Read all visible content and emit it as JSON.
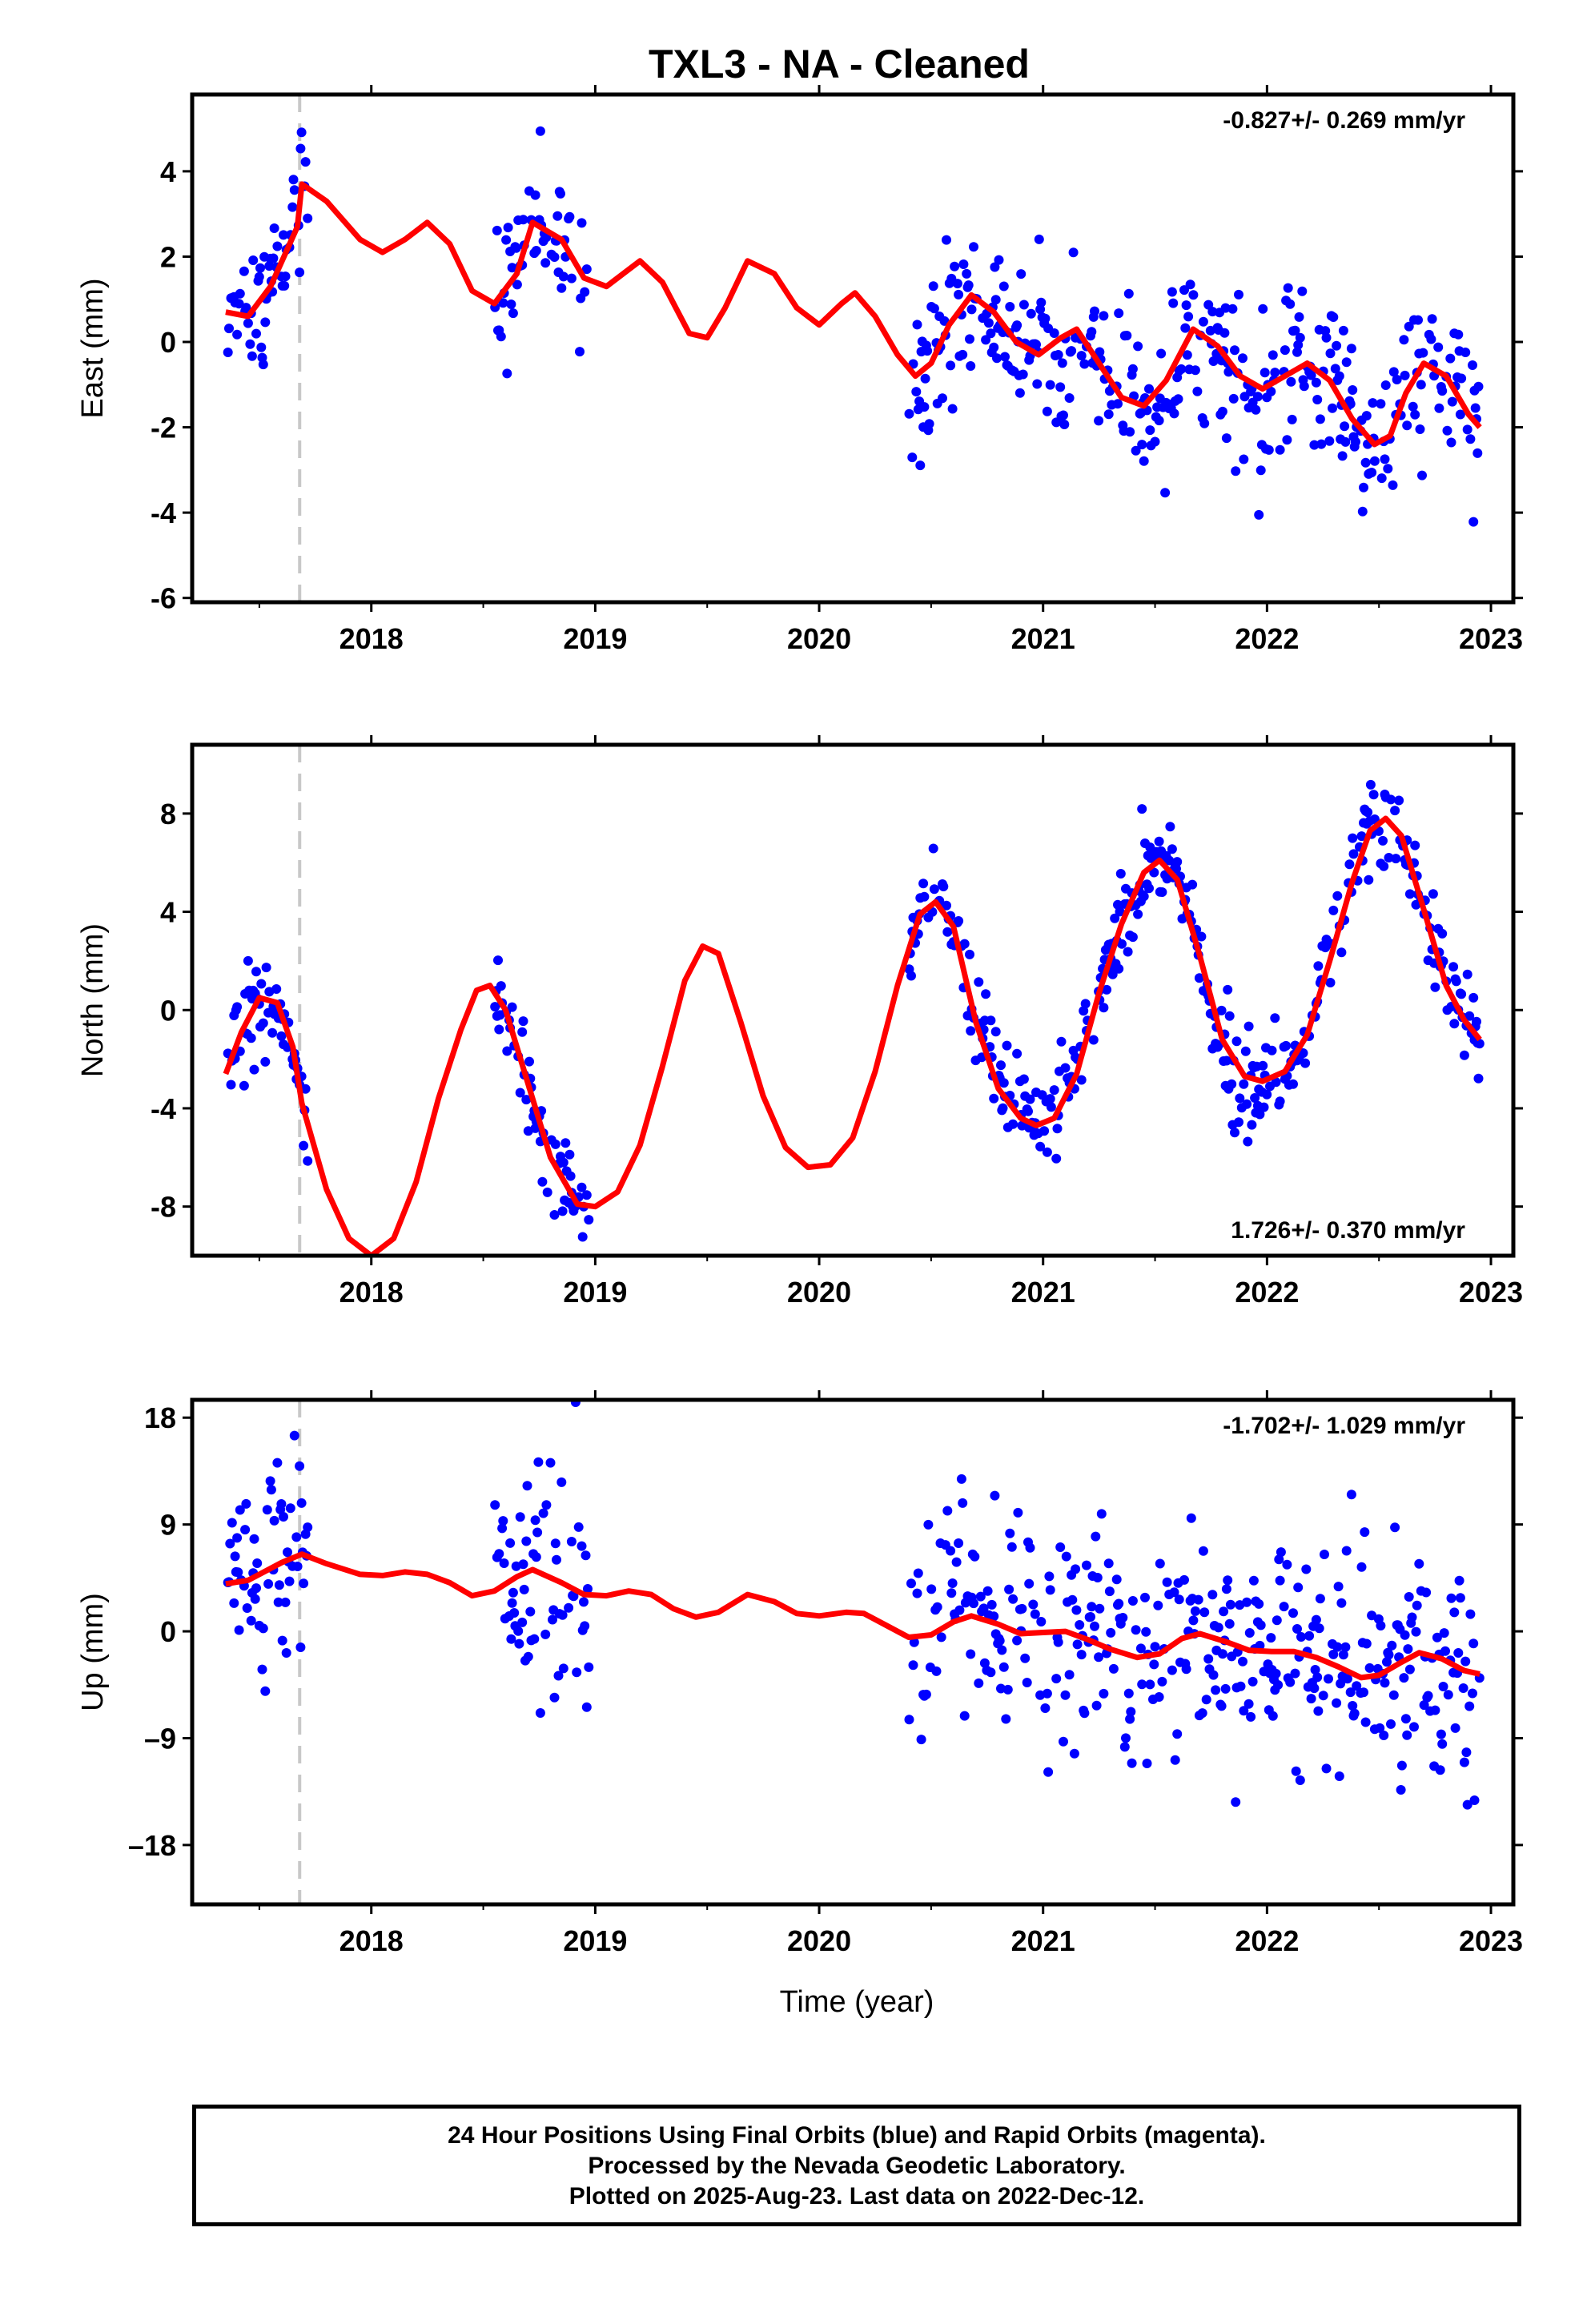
{
  "chart_data": {
    "type": "scatter",
    "title": "TXL3  - NA - Cleaned",
    "xlabel": "Time (year)",
    "x_tick_labels": [
      "2018",
      "2019",
      "2020",
      "2021",
      "2022",
      "2023"
    ],
    "xlim": [
      2017.2,
      2023.1
    ],
    "equipment_change_epoch": 2017.68,
    "colors": {
      "points": "#0000ff",
      "model": "#ff0000",
      "offset_line": "#c8c8c8"
    },
    "panels": [
      {
        "ylabel": "East (mm)",
        "ylim": [
          -6.1,
          5.8
        ],
        "yticks": [
          -6,
          -4,
          -2,
          0,
          2,
          4
        ],
        "y_tick_labels": [
          "-6",
          "-4",
          "-2",
          "0",
          "2",
          "4"
        ],
        "rate_text": "-0.827+/- 0.269 mm/yr",
        "rate_position": "top-right",
        "model_curve": [
          [
            2017.35,
            0.7
          ],
          [
            2017.45,
            0.6
          ],
          [
            2017.55,
            1.3
          ],
          [
            2017.67,
            2.7
          ],
          [
            2017.69,
            3.7
          ],
          [
            2017.8,
            3.3
          ],
          [
            2017.95,
            2.4
          ],
          [
            2018.05,
            2.1
          ],
          [
            2018.15,
            2.4
          ],
          [
            2018.25,
            2.8
          ],
          [
            2018.35,
            2.3
          ],
          [
            2018.45,
            1.2
          ],
          [
            2018.55,
            0.9
          ],
          [
            2018.65,
            1.6
          ],
          [
            2018.72,
            2.8
          ],
          [
            2018.85,
            2.4
          ],
          [
            2018.95,
            1.5
          ],
          [
            2019.05,
            1.3
          ],
          [
            2019.2,
            1.9
          ],
          [
            2019.3,
            1.4
          ],
          [
            2019.42,
            0.2
          ],
          [
            2019.5,
            0.1
          ],
          [
            2019.58,
            0.8
          ],
          [
            2019.68,
            1.9
          ],
          [
            2019.8,
            1.6
          ],
          [
            2019.9,
            0.8
          ],
          [
            2020.0,
            0.4
          ],
          [
            2020.1,
            0.9
          ],
          [
            2020.16,
            1.15
          ],
          [
            2020.25,
            0.6
          ],
          [
            2020.35,
            -0.3
          ],
          [
            2020.43,
            -0.8
          ],
          [
            2020.5,
            -0.5
          ],
          [
            2020.58,
            0.4
          ],
          [
            2020.68,
            1.1
          ],
          [
            2020.78,
            0.7
          ],
          [
            2020.88,
            0.0
          ],
          [
            2020.98,
            -0.3
          ],
          [
            2021.08,
            0.1
          ],
          [
            2021.15,
            0.3
          ],
          [
            2021.25,
            -0.5
          ],
          [
            2021.35,
            -1.3
          ],
          [
            2021.45,
            -1.5
          ],
          [
            2021.55,
            -0.9
          ],
          [
            2021.67,
            0.3
          ],
          [
            2021.78,
            -0.1
          ],
          [
            2021.88,
            -0.8
          ],
          [
            2021.98,
            -1.1
          ],
          [
            2022.08,
            -0.8
          ],
          [
            2022.18,
            -0.5
          ],
          [
            2022.28,
            -0.9
          ],
          [
            2022.38,
            -1.8
          ],
          [
            2022.48,
            -2.4
          ],
          [
            2022.55,
            -2.2
          ],
          [
            2022.62,
            -1.2
          ],
          [
            2022.7,
            -0.5
          ],
          [
            2022.8,
            -0.8
          ],
          [
            2022.9,
            -1.7
          ],
          [
            2022.95,
            -2.0
          ]
        ]
      },
      {
        "ylabel": "North (mm)",
        "ylim": [
          -10,
          10.8
        ],
        "yticks": [
          -8,
          -4,
          0,
          4,
          8
        ],
        "y_tick_labels": [
          "-8",
          "-4",
          "0",
          "4",
          "8"
        ],
        "rate_text": "1.726+/- 0.370 mm/yr",
        "rate_position": "bottom-right",
        "model_curve": [
          [
            2017.35,
            -2.6
          ],
          [
            2017.42,
            -0.9
          ],
          [
            2017.5,
            0.5
          ],
          [
            2017.58,
            0.3
          ],
          [
            2017.65,
            -1.5
          ],
          [
            2017.69,
            -3.8
          ],
          [
            2017.8,
            -7.3
          ],
          [
            2017.9,
            -9.3
          ],
          [
            2018.0,
            -10.0
          ],
          [
            2018.1,
            -9.3
          ],
          [
            2018.2,
            -7.0
          ],
          [
            2018.3,
            -3.6
          ],
          [
            2018.4,
            -0.8
          ],
          [
            2018.47,
            0.8
          ],
          [
            2018.53,
            1.0
          ],
          [
            2018.6,
            0.0
          ],
          [
            2018.7,
            -3.0
          ],
          [
            2018.8,
            -6.0
          ],
          [
            2018.92,
            -7.9
          ],
          [
            2019.0,
            -8.0
          ],
          [
            2019.1,
            -7.4
          ],
          [
            2019.2,
            -5.5
          ],
          [
            2019.3,
            -2.3
          ],
          [
            2019.4,
            1.2
          ],
          [
            2019.48,
            2.6
          ],
          [
            2019.55,
            2.3
          ],
          [
            2019.65,
            -0.5
          ],
          [
            2019.75,
            -3.5
          ],
          [
            2019.85,
            -5.6
          ],
          [
            2019.95,
            -6.4
          ],
          [
            2020.05,
            -6.3
          ],
          [
            2020.15,
            -5.2
          ],
          [
            2020.25,
            -2.5
          ],
          [
            2020.35,
            1.0
          ],
          [
            2020.45,
            3.9
          ],
          [
            2020.52,
            4.4
          ],
          [
            2020.6,
            3.4
          ],
          [
            2020.7,
            -0.5
          ],
          [
            2020.8,
            -3.2
          ],
          [
            2020.9,
            -4.4
          ],
          [
            2020.97,
            -4.7
          ],
          [
            2021.05,
            -4.4
          ],
          [
            2021.15,
            -2.6
          ],
          [
            2021.25,
            0.7
          ],
          [
            2021.35,
            3.5
          ],
          [
            2021.45,
            5.6
          ],
          [
            2021.52,
            6.1
          ],
          [
            2021.6,
            5.3
          ],
          [
            2021.7,
            2.2
          ],
          [
            2021.8,
            -1.2
          ],
          [
            2021.9,
            -2.7
          ],
          [
            2021.98,
            -2.9
          ],
          [
            2022.08,
            -2.5
          ],
          [
            2022.18,
            -1.0
          ],
          [
            2022.28,
            2.0
          ],
          [
            2022.38,
            5.2
          ],
          [
            2022.46,
            7.3
          ],
          [
            2022.53,
            7.8
          ],
          [
            2022.6,
            7.1
          ],
          [
            2022.7,
            4.1
          ],
          [
            2022.8,
            1.0
          ],
          [
            2022.88,
            -0.4
          ],
          [
            2022.95,
            -1.2
          ]
        ]
      },
      {
        "ylabel": "Up (mm)",
        "ylim": [
          -23,
          19.5
        ],
        "yticks": [
          -18,
          -9,
          0,
          9,
          18
        ],
        "y_tick_labels": [
          "–18",
          "–9",
          "0",
          "9",
          "18"
        ],
        "rate_text": "-1.702+/- 1.029 mm/yr",
        "rate_position": "top-right",
        "model_curve": [
          [
            2017.35,
            4.0
          ],
          [
            2017.45,
            4.3
          ],
          [
            2017.6,
            5.8
          ],
          [
            2017.69,
            6.5
          ],
          [
            2017.8,
            5.7
          ],
          [
            2017.95,
            4.8
          ],
          [
            2018.05,
            4.7
          ],
          [
            2018.15,
            5.0
          ],
          [
            2018.25,
            4.8
          ],
          [
            2018.35,
            4.1
          ],
          [
            2018.45,
            3.0
          ],
          [
            2018.55,
            3.4
          ],
          [
            2018.65,
            4.6
          ],
          [
            2018.72,
            5.2
          ],
          [
            2018.85,
            4.1
          ],
          [
            2018.95,
            3.1
          ],
          [
            2019.05,
            3.0
          ],
          [
            2019.15,
            3.4
          ],
          [
            2019.25,
            3.1
          ],
          [
            2019.35,
            1.9
          ],
          [
            2019.45,
            1.2
          ],
          [
            2019.55,
            1.6
          ],
          [
            2019.68,
            3.1
          ],
          [
            2019.8,
            2.5
          ],
          [
            2019.9,
            1.5
          ],
          [
            2020.0,
            1.3
          ],
          [
            2020.12,
            1.6
          ],
          [
            2020.2,
            1.5
          ],
          [
            2020.3,
            0.5
          ],
          [
            2020.4,
            -0.5
          ],
          [
            2020.5,
            -0.3
          ],
          [
            2020.6,
            0.8
          ],
          [
            2020.68,
            1.3
          ],
          [
            2020.8,
            0.6
          ],
          [
            2020.9,
            -0.2
          ],
          [
            2021.0,
            -0.1
          ],
          [
            2021.1,
            0.0
          ],
          [
            2021.2,
            -0.7
          ],
          [
            2021.3,
            -1.5
          ],
          [
            2021.42,
            -2.2
          ],
          [
            2021.52,
            -1.9
          ],
          [
            2021.62,
            -0.6
          ],
          [
            2021.7,
            -0.2
          ],
          [
            2021.82,
            -0.9
          ],
          [
            2021.92,
            -1.6
          ],
          [
            2022.02,
            -1.7
          ],
          [
            2022.12,
            -1.7
          ],
          [
            2022.22,
            -2.2
          ],
          [
            2022.32,
            -3.0
          ],
          [
            2022.42,
            -3.9
          ],
          [
            2022.5,
            -3.7
          ],
          [
            2022.6,
            -2.6
          ],
          [
            2022.68,
            -1.8
          ],
          [
            2022.78,
            -2.3
          ],
          [
            2022.88,
            -3.3
          ],
          [
            2022.95,
            -3.6
          ]
        ]
      }
    ]
  },
  "footer": {
    "line1": "24 Hour Positions Using Final Orbits (blue) and Rapid Orbits (magenta).",
    "line2": "Processed by the Nevada Geodetic Laboratory.",
    "line3": "Plotted on 2025-Aug-23. Last data on 2022-Dec-12."
  }
}
